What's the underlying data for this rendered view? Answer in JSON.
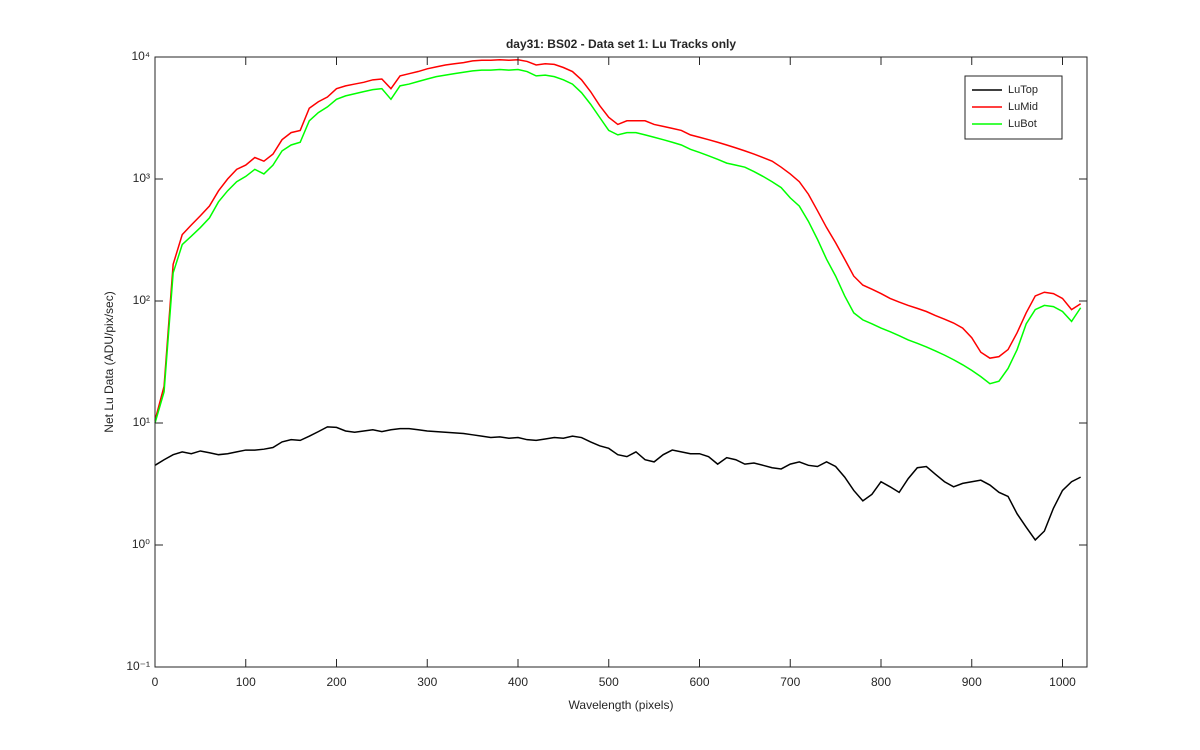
{
  "chart_data": {
    "type": "line",
    "title": "day31: BS02 - Data set 1: Lu Tracks only",
    "xlabel": "Wavelength (pixels)",
    "ylabel": "Net Lu Data (ADU/pix/sec)",
    "log_y": true,
    "legend": "northeast",
    "xlim": [
      0,
      1027
    ],
    "ylim": [
      0.1,
      10000
    ],
    "xticks": [
      0,
      100,
      200,
      300,
      400,
      500,
      600,
      700,
      800,
      900,
      1000
    ],
    "yticks": [
      {
        "value": 0.1,
        "label": "10⁻¹"
      },
      {
        "value": 1,
        "label": "10⁰"
      },
      {
        "value": 10,
        "label": "10¹"
      },
      {
        "value": 100,
        "label": "10²"
      },
      {
        "value": 1000,
        "label": "10³"
      },
      {
        "value": 10000,
        "label": "10⁴"
      }
    ],
    "x": [
      0,
      10,
      20,
      30,
      40,
      50,
      60,
      70,
      80,
      90,
      100,
      110,
      120,
      130,
      140,
      150,
      160,
      170,
      180,
      190,
      200,
      210,
      220,
      230,
      240,
      250,
      260,
      270,
      280,
      290,
      300,
      310,
      320,
      330,
      340,
      350,
      360,
      370,
      380,
      390,
      400,
      410,
      420,
      430,
      440,
      450,
      460,
      470,
      480,
      490,
      500,
      510,
      520,
      530,
      540,
      550,
      560,
      570,
      580,
      590,
      600,
      610,
      620,
      630,
      640,
      650,
      660,
      670,
      680,
      690,
      700,
      710,
      720,
      730,
      740,
      750,
      760,
      770,
      780,
      790,
      800,
      810,
      820,
      830,
      840,
      850,
      860,
      870,
      880,
      890,
      900,
      910,
      920,
      930,
      940,
      950,
      960,
      970,
      980,
      990,
      1000,
      1010,
      1020
    ],
    "series": [
      {
        "name": "LuTop",
        "color": "#000000",
        "values": [
          4.5,
          5,
          5.5,
          5.8,
          5.6,
          5.9,
          5.7,
          5.5,
          5.6,
          5.8,
          6,
          6,
          6.1,
          6.3,
          7,
          7.3,
          7.2,
          7.8,
          8.5,
          9.3,
          9.2,
          8.6,
          8.4,
          8.6,
          8.8,
          8.5,
          8.8,
          9,
          9,
          8.8,
          8.6,
          8.5,
          8.4,
          8.3,
          8.2,
          8,
          7.8,
          7.6,
          7.7,
          7.5,
          7.6,
          7.3,
          7.2,
          7.4,
          7.6,
          7.5,
          7.8,
          7.6,
          7,
          6.5,
          6.2,
          5.5,
          5.3,
          5.8,
          5,
          4.8,
          5.5,
          6,
          5.8,
          5.6,
          5.6,
          5.3,
          4.6,
          5.2,
          5,
          4.6,
          4.7,
          4.5,
          4.3,
          4.2,
          4.6,
          4.8,
          4.5,
          4.4,
          4.8,
          4.4,
          3.6,
          2.8,
          2.3,
          2.6,
          3.3,
          3,
          2.7,
          3.5,
          4.3,
          4.4,
          3.8,
          3.3,
          3,
          3.2,
          3.3,
          3.4,
          3.1,
          2.7,
          2.5,
          1.8,
          1.4,
          1.1,
          1.3,
          2,
          2.8,
          3.3,
          3.6
        ]
      },
      {
        "name": "LuMid",
        "color": "#ff0000",
        "values": [
          10.5,
          20,
          200,
          350,
          420,
          500,
          600,
          800,
          1000,
          1200,
          1300,
          1500,
          1400,
          1600,
          2100,
          2400,
          2500,
          3800,
          4300,
          4700,
          5500,
          5800,
          6000,
          6200,
          6500,
          6600,
          5500,
          7000,
          7300,
          7600,
          8000,
          8300,
          8600,
          8800,
          9000,
          9300,
          9400,
          9400,
          9500,
          9400,
          9500,
          9200,
          8600,
          8800,
          8700,
          8200,
          7600,
          6500,
          5200,
          4000,
          3200,
          2800,
          3000,
          3000,
          3000,
          2800,
          2700,
          2600,
          2500,
          2300,
          2200,
          2100,
          2000,
          1900,
          1800,
          1700,
          1600,
          1500,
          1400,
          1250,
          1100,
          950,
          750,
          550,
          400,
          300,
          220,
          160,
          135,
          125,
          115,
          105,
          98,
          92,
          87,
          82,
          76,
          71,
          66,
          60,
          50,
          38,
          34,
          35,
          40,
          55,
          80,
          110,
          118,
          115,
          105,
          85,
          95
        ]
      },
      {
        "name": "LuBot",
        "color": "#00ff00",
        "values": [
          10,
          18,
          170,
          290,
          340,
          400,
          480,
          650,
          800,
          950,
          1050,
          1200,
          1100,
          1300,
          1700,
          1900,
          2000,
          3000,
          3500,
          3900,
          4500,
          4800,
          5000,
          5200,
          5400,
          5500,
          4500,
          5800,
          6000,
          6300,
          6600,
          6900,
          7100,
          7300,
          7500,
          7700,
          7800,
          7800,
          7900,
          7800,
          7900,
          7600,
          7000,
          7100,
          6900,
          6500,
          6000,
          5100,
          4100,
          3200,
          2500,
          2300,
          2400,
          2400,
          2300,
          2200,
          2100,
          2000,
          1900,
          1750,
          1650,
          1550,
          1450,
          1350,
          1300,
          1250,
          1150,
          1050,
          950,
          850,
          700,
          600,
          450,
          320,
          220,
          160,
          110,
          80,
          70,
          65,
          60,
          56,
          52,
          48,
          45,
          42,
          39,
          36,
          33,
          30,
          27,
          24,
          21,
          22,
          28,
          40,
          65,
          85,
          92,
          90,
          82,
          68,
          88
        ]
      }
    ]
  }
}
